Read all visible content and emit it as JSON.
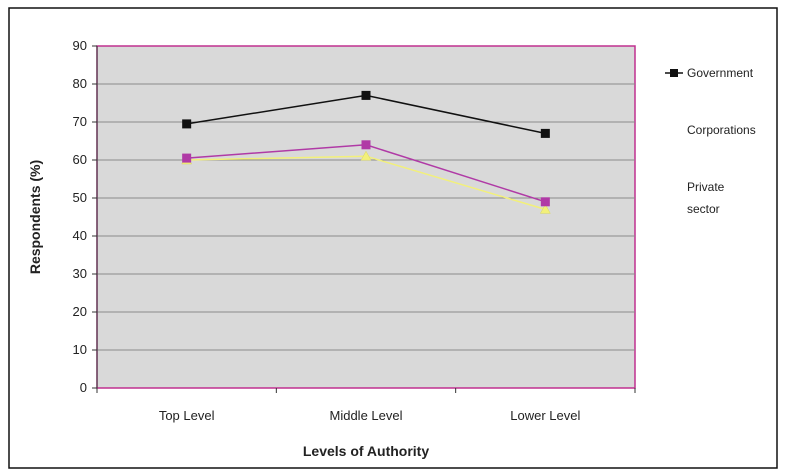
{
  "chart_data": {
    "type": "line",
    "title": "",
    "xlabel": "Levels of Authority",
    "ylabel": "Respondents (%)",
    "categories": [
      "Top Level",
      "Middle Level",
      "Lower Level"
    ],
    "ylim": [
      0,
      90
    ],
    "yticks": [
      0,
      10,
      20,
      30,
      40,
      50,
      60,
      70,
      80,
      90
    ],
    "grid": true,
    "legend_position": "right",
    "series": [
      {
        "name": "Government",
        "values": [
          69.5,
          77,
          67
        ],
        "color": "#111111",
        "marker": "square"
      },
      {
        "name": "Corporations",
        "values": [
          60.5,
          64,
          49
        ],
        "color": "#b03aa6",
        "marker": "square"
      },
      {
        "name": "Private sector",
        "values": [
          60,
          61,
          47
        ],
        "color": "#f2f07a",
        "marker": "triangle"
      }
    ],
    "plot_background": "#d9d9d9",
    "plot_border_color": "#c0308f"
  }
}
